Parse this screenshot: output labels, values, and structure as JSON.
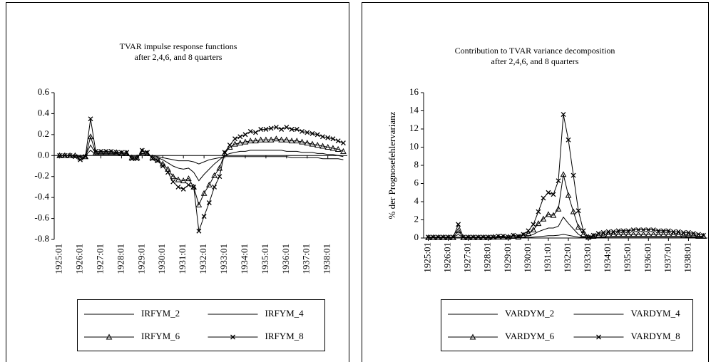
{
  "chart_data": [
    {
      "type": "line",
      "title": "TVAR impulse response functions",
      "subtitle": "after  2,4,6, and 8 quarters",
      "categories": [
        "1925:01",
        null,
        null,
        null,
        "1926:01",
        null,
        null,
        null,
        "1927:01",
        null,
        null,
        null,
        "1928:01",
        null,
        null,
        null,
        "1929:01",
        null,
        null,
        null,
        "1930:01",
        null,
        null,
        null,
        "1931:01",
        null,
        null,
        null,
        "1932:01",
        null,
        null,
        null,
        "1933:01",
        null,
        null,
        null,
        "1934:01",
        null,
        null,
        null,
        "1935:01",
        null,
        null,
        null,
        "1936:01",
        null,
        null,
        null,
        "1937:01",
        null,
        null,
        null,
        "1938:01",
        null,
        null,
        null
      ],
      "ylim": [
        -0.8,
        0.6
      ],
      "yticks": [
        0.6,
        0.4,
        0.2,
        {
          "value": 0,
          "label": "0.0"
        },
        -0.2,
        -0.4,
        -0.6,
        -0.8
      ],
      "series": [
        {
          "name": "IRFYM_2",
          "color": "#000000",
          "marker": "none",
          "values": [
            0,
            0,
            0,
            0,
            0,
            0,
            0.05,
            0.01,
            0.01,
            0.01,
            0.01,
            0.01,
            0,
            0,
            0,
            0,
            0.01,
            0,
            0,
            -0.01,
            -0.02,
            -0.03,
            -0.04,
            -0.05,
            -0.05,
            -0.05,
            -0.06,
            -0.08,
            -0.06,
            -0.04,
            -0.03,
            -0.02,
            -0.01,
            -0.01,
            -0.01,
            -0.01,
            -0.01,
            -0.01,
            -0.01,
            -0.01,
            -0.01,
            -0.01,
            -0.01,
            -0.01,
            -0.01,
            -0.02,
            -0.02,
            -0.02,
            -0.02,
            -0.02,
            -0.02,
            -0.03,
            -0.03,
            -0.03,
            -0.03,
            -0.04
          ]
        },
        {
          "name": "IRFYM_4",
          "color": "#000000",
          "marker": "none",
          "values": [
            0,
            0,
            0,
            0,
            -0.01,
            0,
            0.1,
            0.02,
            0.02,
            0.02,
            0.02,
            0.02,
            0.01,
            0.01,
            -0.01,
            -0.01,
            0.02,
            0.01,
            -0.01,
            -0.02,
            -0.04,
            -0.07,
            -0.1,
            -0.12,
            -0.13,
            -0.12,
            -0.16,
            -0.24,
            -0.18,
            -0.13,
            -0.08,
            -0.04,
            0,
            0.02,
            0.03,
            0.04,
            0.04,
            0.05,
            0.05,
            0.05,
            0.05,
            0.05,
            0.05,
            0.05,
            0.04,
            0.04,
            0.04,
            0.03,
            0.03,
            0.03,
            0.02,
            0.02,
            0.01,
            0.01,
            0,
            -0.01
          ]
        },
        {
          "name": "IRFYM_6",
          "color": "#000000",
          "marker": "triangle",
          "values": [
            0,
            0,
            0,
            0,
            -0.02,
            -0.01,
            0.18,
            0.03,
            0.03,
            0.03,
            0.03,
            0.03,
            0.02,
            0.02,
            -0.02,
            -0.02,
            0.04,
            0.02,
            -0.02,
            -0.04,
            -0.08,
            -0.13,
            -0.2,
            -0.23,
            -0.24,
            -0.22,
            -0.3,
            -0.47,
            -0.36,
            -0.28,
            -0.19,
            -0.12,
            0.02,
            0.08,
            0.11,
            0.12,
            0.13,
            0.14,
            0.14,
            0.15,
            0.15,
            0.15,
            0.16,
            0.15,
            0.15,
            0.14,
            0.14,
            0.13,
            0.12,
            0.11,
            0.1,
            0.09,
            0.08,
            0.07,
            0.06,
            0.04
          ]
        },
        {
          "name": "IRFYM_8",
          "color": "#000000",
          "marker": "x",
          "values": [
            0,
            0,
            0,
            -0.01,
            -0.04,
            -0.01,
            0.35,
            0.04,
            0.04,
            0.04,
            0.04,
            0.03,
            0.03,
            0.03,
            -0.03,
            -0.03,
            0.05,
            0.03,
            -0.03,
            -0.05,
            -0.1,
            -0.16,
            -0.25,
            -0.3,
            -0.32,
            -0.28,
            -0.3,
            -0.72,
            -0.58,
            -0.45,
            -0.3,
            -0.2,
            0.03,
            0.1,
            0.16,
            0.18,
            0.2,
            0.23,
            0.22,
            0.25,
            0.25,
            0.26,
            0.27,
            0.25,
            0.27,
            0.25,
            0.25,
            0.23,
            0.22,
            0.21,
            0.2,
            0.18,
            0.17,
            0.16,
            0.14,
            0.12
          ]
        }
      ]
    },
    {
      "type": "line",
      "title": "Contribution to TVAR variance decomposition",
      "subtitle": "after  2,4,6, and 8 quarters",
      "y_label": "% der Prognosefehlervarianz",
      "categories": [
        "1925:01",
        null,
        null,
        null,
        "1926:01",
        null,
        null,
        null,
        "1927:01",
        null,
        null,
        null,
        "1928:01",
        null,
        null,
        null,
        "1929:01",
        null,
        null,
        null,
        "1930:01",
        null,
        null,
        null,
        "1931:01",
        null,
        null,
        null,
        "1932:01",
        null,
        null,
        null,
        "1933:01",
        null,
        null,
        null,
        "1934:01",
        null,
        null,
        null,
        "1935:01",
        null,
        null,
        null,
        "1936:01",
        null,
        null,
        null,
        "1937:01",
        null,
        null,
        null,
        "1938:01",
        null,
        null,
        null
      ],
      "ylim": [
        0,
        16
      ],
      "yticks": [
        16,
        14,
        12,
        10,
        8,
        6,
        4,
        2,
        0
      ],
      "series": [
        {
          "name": "VARDYM_2",
          "color": "#000000",
          "marker": "none",
          "values": [
            0.01,
            0.01,
            0.01,
            0.01,
            0.01,
            0.01,
            0.1,
            0.01,
            0.01,
            0.01,
            0.01,
            0.01,
            0.01,
            0.01,
            0.01,
            0.01,
            0.01,
            0.01,
            0.02,
            0.03,
            0.05,
            0.1,
            0.15,
            0.2,
            0.25,
            0.25,
            0.3,
            0.4,
            0.3,
            0.2,
            0.1,
            0.05,
            0.02,
            0.03,
            0.03,
            0.03,
            0.03,
            0.03,
            0.03,
            0.03,
            0.03,
            0.03,
            0.03,
            0.03,
            0.03,
            0.03,
            0.03,
            0.03,
            0.03,
            0.03,
            0.03,
            0.03,
            0.03,
            0.03,
            0.03,
            0.03
          ]
        },
        {
          "name": "VARDYM_4",
          "color": "#000000",
          "marker": "none",
          "values": [
            0.02,
            0.02,
            0.02,
            0.02,
            0.02,
            0.02,
            0.4,
            0.02,
            0.02,
            0.02,
            0.02,
            0.02,
            0.02,
            0.02,
            0.02,
            0.02,
            0.02,
            0.02,
            0.05,
            0.1,
            0.2,
            0.4,
            0.7,
            0.9,
            1.1,
            1.1,
            1.3,
            2.3,
            1.6,
            1.0,
            0.4,
            0.1,
            0.05,
            0.1,
            0.1,
            0.15,
            0.15,
            0.2,
            0.2,
            0.2,
            0.2,
            0.2,
            0.2,
            0.2,
            0.2,
            0.2,
            0.2,
            0.2,
            0.2,
            0.2,
            0.2,
            0.2,
            0.15,
            0.15,
            0.1,
            0.1
          ]
        },
        {
          "name": "VARDYM_6",
          "color": "#000000",
          "marker": "triangle",
          "values": [
            0.05,
            0.05,
            0.05,
            0.05,
            0.05,
            0.05,
            0.8,
            0.05,
            0.05,
            0.05,
            0.05,
            0.05,
            0.05,
            0.1,
            0.1,
            0.1,
            0.1,
            0.2,
            0.1,
            0.3,
            0.5,
            0.9,
            1.6,
            2.1,
            2.6,
            2.5,
            3.2,
            7.0,
            4.7,
            2.9,
            1.2,
            0.4,
            0.1,
            0.2,
            0.3,
            0.3,
            0.4,
            0.4,
            0.4,
            0.4,
            0.4,
            0.4,
            0.4,
            0.4,
            0.4,
            0.4,
            0.4,
            0.4,
            0.4,
            0.4,
            0.4,
            0.3,
            0.3,
            0.3,
            0.2,
            0.2
          ]
        },
        {
          "name": "VARDYM_8",
          "color": "#000000",
          "marker": "x",
          "values": [
            0.1,
            0.1,
            0.1,
            0.1,
            0.1,
            0.1,
            1.5,
            0.1,
            0.1,
            0.1,
            0.1,
            0.1,
            0.1,
            0.1,
            0.2,
            0.2,
            0.1,
            0.3,
            0.2,
            0.4,
            0.8,
            1.5,
            2.9,
            4.4,
            5.0,
            4.8,
            6.3,
            13.6,
            10.8,
            6.9,
            3.0,
            0.8,
            0.1,
            0.3,
            0.5,
            0.6,
            0.7,
            0.7,
            0.8,
            0.8,
            0.8,
            0.9,
            0.9,
            0.9,
            0.9,
            0.9,
            0.8,
            0.8,
            0.8,
            0.7,
            0.7,
            0.6,
            0.6,
            0.5,
            0.4,
            0.3
          ]
        }
      ]
    }
  ]
}
